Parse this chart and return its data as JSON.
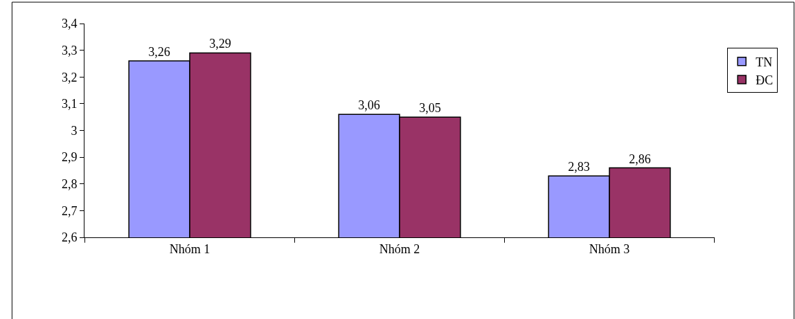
{
  "chart_data": {
    "type": "bar",
    "categories": [
      "Nhóm 1",
      "Nhóm 2",
      "Nhóm 3"
    ],
    "series": [
      {
        "name": "TN",
        "color": "#9999ff",
        "values": [
          3.26,
          3.06,
          2.83
        ],
        "value_labels": [
          "3,26",
          "3,06",
          "2,83"
        ]
      },
      {
        "name": "ĐC",
        "color": "#993366",
        "values": [
          3.29,
          3.05,
          2.86
        ],
        "value_labels": [
          "3,29",
          "3,05",
          "2,86"
        ]
      }
    ],
    "ylim": [
      2.6,
      3.4
    ],
    "yticks": [
      {
        "value": 2.6,
        "label": "2,6"
      },
      {
        "value": 2.7,
        "label": "2,7"
      },
      {
        "value": 2.8,
        "label": "2,8"
      },
      {
        "value": 2.9,
        "label": "2,9"
      },
      {
        "value": 3,
        "label": "3"
      },
      {
        "value": 3.1,
        "label": "3,1"
      },
      {
        "value": 3.2,
        "label": "3,2"
      },
      {
        "value": 3.3,
        "label": "3,3"
      },
      {
        "value": 3.4,
        "label": "3,4"
      }
    ],
    "grid": false,
    "legend": "right"
  }
}
